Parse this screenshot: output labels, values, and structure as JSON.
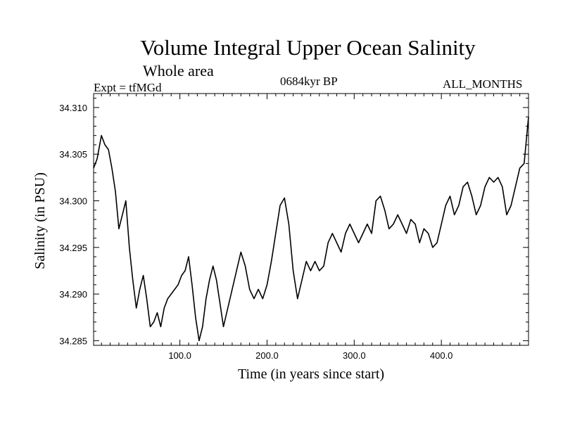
{
  "title": "Volume Integral Upper Ocean Salinity",
  "subtitle": "Whole area",
  "experiment": "Expt = tfMGd",
  "period": "0684kyr BP",
  "months": "ALL_MONTHS",
  "chart_data": {
    "type": "line",
    "xlabel": "Time (in years since start)",
    "ylabel": "Salinity (in PSU)",
    "xlim": [
      1,
      500
    ],
    "ylim": [
      34.2845,
      34.3115
    ],
    "x_ticks": [
      100,
      200,
      300,
      400
    ],
    "x_tick_labels": [
      "100.0",
      "200.0",
      "300.0",
      "400.0"
    ],
    "y_ticks": [
      34.285,
      34.29,
      34.295,
      34.3,
      34.305,
      34.31
    ],
    "y_tick_labels": [
      "34.285",
      "34.290",
      "34.295",
      "34.300",
      "34.305",
      "34.310"
    ],
    "grid": false,
    "line_color": "#000000",
    "series": [
      {
        "x": [
          1,
          5,
          10,
          14,
          18,
          22,
          26,
          30,
          34,
          38,
          42,
          46,
          50,
          54,
          58,
          62,
          66,
          70,
          74,
          78,
          82,
          86,
          90,
          94,
          98,
          102,
          106,
          110,
          114,
          118,
          122,
          126,
          130,
          134,
          138,
          142,
          146,
          150,
          155,
          160,
          165,
          170,
          175,
          180,
          185,
          190,
          195,
          200,
          205,
          210,
          215,
          220,
          225,
          230,
          235,
          240,
          245,
          250,
          255,
          260,
          265,
          270,
          275,
          280,
          285,
          290,
          295,
          300,
          305,
          310,
          315,
          320,
          325,
          330,
          335,
          340,
          345,
          350,
          355,
          360,
          365,
          370,
          375,
          380,
          385,
          390,
          395,
          400,
          405,
          410,
          415,
          420,
          425,
          430,
          435,
          440,
          445,
          450,
          455,
          460,
          465,
          470,
          475,
          480,
          485,
          490,
          495,
          500
        ],
        "y": [
          34.3035,
          34.3045,
          34.307,
          34.306,
          34.3055,
          34.3035,
          34.301,
          34.297,
          34.2985,
          34.3,
          34.295,
          34.2915,
          34.2885,
          34.2905,
          34.292,
          34.2895,
          34.2865,
          34.287,
          34.288,
          34.2865,
          34.2885,
          34.2895,
          34.29,
          34.2905,
          34.291,
          34.292,
          34.2925,
          34.294,
          34.291,
          34.2875,
          34.285,
          34.2865,
          34.2895,
          34.2915,
          34.293,
          34.2915,
          34.289,
          34.2865,
          34.2885,
          34.2905,
          34.2925,
          34.2945,
          34.293,
          34.2905,
          34.2895,
          34.2905,
          34.2895,
          34.291,
          34.2935,
          34.2965,
          34.2995,
          34.3003,
          34.2975,
          34.2925,
          34.2895,
          34.2915,
          34.2935,
          34.2925,
          34.2935,
          34.2925,
          34.293,
          34.2955,
          34.2965,
          34.2955,
          34.2945,
          34.2965,
          34.2975,
          34.2965,
          34.2955,
          34.2965,
          34.2975,
          34.2965,
          34.3,
          34.3005,
          34.299,
          34.297,
          34.2975,
          34.2985,
          34.2975,
          34.2965,
          34.298,
          34.2975,
          34.2955,
          34.297,
          34.2965,
          34.295,
          34.2955,
          34.2975,
          34.2995,
          34.3005,
          34.2985,
          34.2995,
          34.3015,
          34.302,
          34.3005,
          34.2985,
          34.2995,
          34.3015,
          34.3025,
          34.302,
          34.3025,
          34.3015,
          34.2985,
          34.2995,
          34.3015,
          34.3035,
          34.304,
          34.309
        ]
      }
    ]
  }
}
